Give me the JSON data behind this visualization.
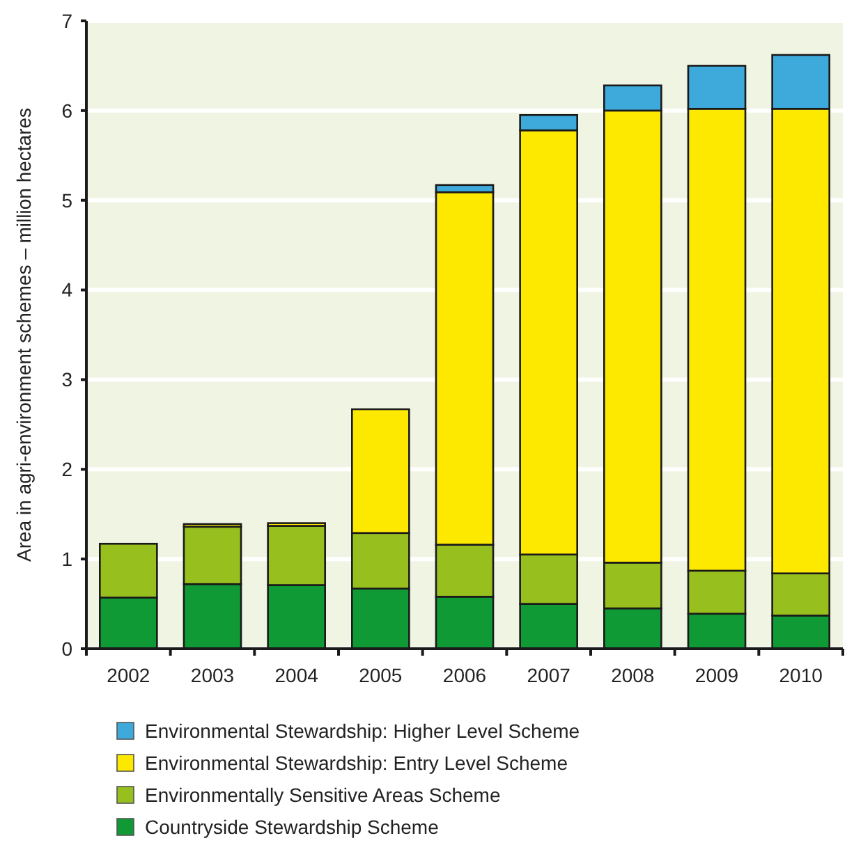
{
  "chart_data": {
    "type": "bar",
    "stacked": true,
    "ylabel": "Area in agri-environment schemes – million hectares",
    "categories": [
      "2002",
      "2003",
      "2004",
      "2005",
      "2006",
      "2007",
      "2008",
      "2009",
      "2010"
    ],
    "series": [
      {
        "name": "Countryside Stewardship Scheme",
        "color": "#0f9a35",
        "values": [
          0.57,
          0.72,
          0.71,
          0.67,
          0.58,
          0.5,
          0.45,
          0.39,
          0.37
        ]
      },
      {
        "name": "Environmentally Sensitive Areas Scheme",
        "color": "#97bf1e",
        "values": [
          0.6,
          0.64,
          0.66,
          0.62,
          0.58,
          0.55,
          0.51,
          0.48,
          0.47
        ]
      },
      {
        "name": "Environmental Stewardship: Entry Level Scheme",
        "color": "#fde800",
        "values": [
          null,
          0.03,
          0.03,
          1.38,
          3.93,
          4.73,
          5.04,
          5.15,
          5.18
        ]
      },
      {
        "name": "Environmental Stewardship: Higher Level Scheme",
        "color": "#3eaadc",
        "values": [
          null,
          null,
          null,
          null,
          0.08,
          0.17,
          0.28,
          0.48,
          0.6
        ]
      }
    ],
    "ylim": [
      0,
      7
    ],
    "yticks": [
      0,
      1,
      2,
      3,
      4,
      5,
      6,
      7
    ],
    "grid": "y",
    "legend": "bottom"
  }
}
